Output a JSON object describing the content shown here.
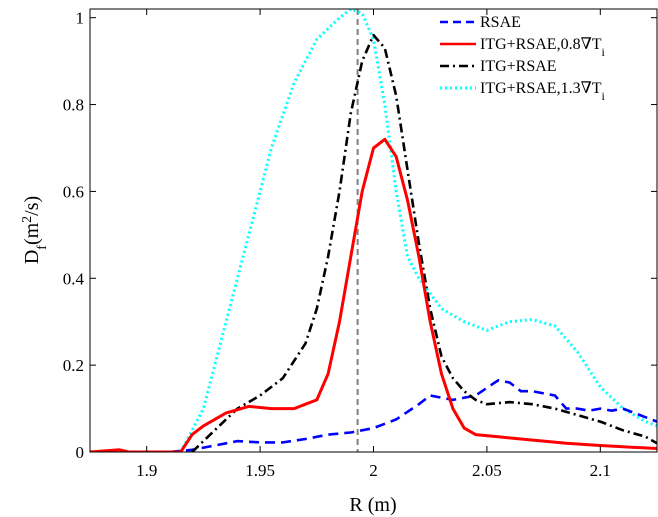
{
  "chart_data": {
    "type": "line",
    "xlabel": "R (m)",
    "ylabel": "D_f(m^2/s)",
    "xlim": [
      1.875,
      2.125
    ],
    "ylim": [
      0,
      1.02
    ],
    "x_ticks": [
      "1.9",
      "1.95",
      "2",
      "2.05",
      "2.1"
    ],
    "y_ticks": [
      "0",
      "0.2",
      "0.4",
      "0.6",
      "0.8",
      "1"
    ],
    "grid": false,
    "legend_position": "top-right",
    "vline": {
      "x": 1.993,
      "color": "#808080",
      "style": "dashed"
    },
    "series": [
      {
        "name": "RSAE",
        "color": "#0000ff",
        "style": "dashed",
        "points": [
          [
            1.875,
            0
          ],
          [
            1.91,
            0
          ],
          [
            1.92,
            0.005
          ],
          [
            1.93,
            0.015
          ],
          [
            1.94,
            0.025
          ],
          [
            1.95,
            0.022
          ],
          [
            1.96,
            0.022
          ],
          [
            1.97,
            0.03
          ],
          [
            1.98,
            0.04
          ],
          [
            1.99,
            0.045
          ],
          [
            2.0,
            0.055
          ],
          [
            2.01,
            0.075
          ],
          [
            2.02,
            0.11
          ],
          [
            2.025,
            0.13
          ],
          [
            2.035,
            0.12
          ],
          [
            2.045,
            0.13
          ],
          [
            2.055,
            0.165
          ],
          [
            2.06,
            0.16
          ],
          [
            2.065,
            0.14
          ],
          [
            2.07,
            0.14
          ],
          [
            2.075,
            0.135
          ],
          [
            2.08,
            0.13
          ],
          [
            2.085,
            0.1
          ],
          [
            2.09,
            0.1
          ],
          [
            2.095,
            0.095
          ],
          [
            2.1,
            0.1
          ],
          [
            2.105,
            0.095
          ],
          [
            2.11,
            0.1
          ],
          [
            2.115,
            0.09
          ],
          [
            2.12,
            0.08
          ],
          [
            2.125,
            0.07
          ]
        ]
      },
      {
        "name": "ITG+RSAE,0.8∇T",
        "name_subscript": "i",
        "color": "#ff0000",
        "style": "solid",
        "points": [
          [
            1.875,
            0
          ],
          [
            1.88,
            0.002
          ],
          [
            1.888,
            0.005
          ],
          [
            1.892,
            0
          ],
          [
            1.915,
            0
          ],
          [
            1.92,
            0.04
          ],
          [
            1.925,
            0.06
          ],
          [
            1.935,
            0.09
          ],
          [
            1.945,
            0.105
          ],
          [
            1.955,
            0.1
          ],
          [
            1.965,
            0.1
          ],
          [
            1.97,
            0.11
          ],
          [
            1.975,
            0.12
          ],
          [
            1.98,
            0.18
          ],
          [
            1.985,
            0.3
          ],
          [
            1.99,
            0.45
          ],
          [
            1.995,
            0.6
          ],
          [
            2.0,
            0.7
          ],
          [
            2.005,
            0.72
          ],
          [
            2.01,
            0.68
          ],
          [
            2.015,
            0.58
          ],
          [
            2.02,
            0.45
          ],
          [
            2.025,
            0.3
          ],
          [
            2.03,
            0.18
          ],
          [
            2.035,
            0.1
          ],
          [
            2.04,
            0.055
          ],
          [
            2.045,
            0.04
          ],
          [
            2.055,
            0.035
          ],
          [
            2.065,
            0.03
          ],
          [
            2.075,
            0.025
          ],
          [
            2.085,
            0.02
          ],
          [
            2.1,
            0.015
          ],
          [
            2.11,
            0.012
          ],
          [
            2.125,
            0.008
          ]
        ]
      },
      {
        "name": "ITG+RSAE",
        "color": "#000000",
        "style": "dashdot",
        "points": [
          [
            1.92,
            0
          ],
          [
            1.93,
            0.05
          ],
          [
            1.94,
            0.1
          ],
          [
            1.95,
            0.13
          ],
          [
            1.96,
            0.17
          ],
          [
            1.97,
            0.25
          ],
          [
            1.975,
            0.33
          ],
          [
            1.98,
            0.45
          ],
          [
            1.985,
            0.6
          ],
          [
            1.99,
            0.78
          ],
          [
            1.995,
            0.9
          ],
          [
            2.0,
            0.96
          ],
          [
            2.005,
            0.93
          ],
          [
            2.01,
            0.82
          ],
          [
            2.015,
            0.65
          ],
          [
            2.02,
            0.48
          ],
          [
            2.025,
            0.33
          ],
          [
            2.03,
            0.22
          ],
          [
            2.035,
            0.17
          ],
          [
            2.04,
            0.14
          ],
          [
            2.045,
            0.12
          ],
          [
            2.05,
            0.11
          ],
          [
            2.06,
            0.115
          ],
          [
            2.07,
            0.11
          ],
          [
            2.08,
            0.1
          ],
          [
            2.09,
            0.085
          ],
          [
            2.1,
            0.07
          ],
          [
            2.11,
            0.05
          ],
          [
            2.12,
            0.035
          ],
          [
            2.125,
            0.02
          ]
        ]
      },
      {
        "name": "ITG+RSAE,1.3∇T",
        "name_subscript": "i",
        "color": "#00ffff",
        "style": "dotted",
        "points": [
          [
            1.915,
            0
          ],
          [
            1.925,
            0.1
          ],
          [
            1.935,
            0.3
          ],
          [
            1.945,
            0.5
          ],
          [
            1.955,
            0.7
          ],
          [
            1.965,
            0.85
          ],
          [
            1.975,
            0.95
          ],
          [
            1.985,
            1.0
          ],
          [
            1.99,
            1.02
          ],
          [
            1.995,
            1.01
          ],
          [
            2.0,
            0.95
          ],
          [
            2.005,
            0.8
          ],
          [
            2.01,
            0.6
          ],
          [
            2.015,
            0.45
          ],
          [
            2.02,
            0.4
          ],
          [
            2.03,
            0.33
          ],
          [
            2.04,
            0.3
          ],
          [
            2.05,
            0.28
          ],
          [
            2.055,
            0.29
          ],
          [
            2.06,
            0.3
          ],
          [
            2.07,
            0.305
          ],
          [
            2.08,
            0.29
          ],
          [
            2.09,
            0.23
          ],
          [
            2.1,
            0.15
          ],
          [
            2.11,
            0.1
          ],
          [
            2.12,
            0.07
          ],
          [
            2.125,
            0.06
          ]
        ]
      }
    ]
  }
}
